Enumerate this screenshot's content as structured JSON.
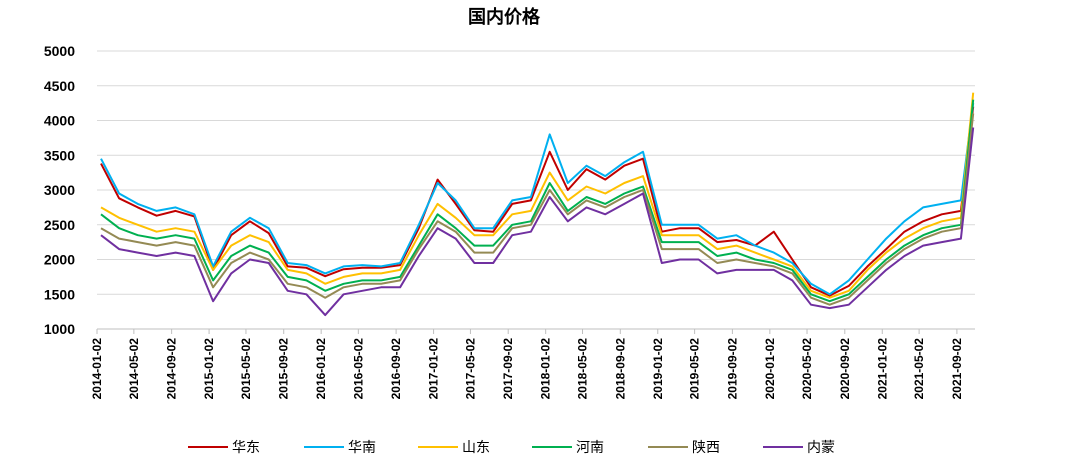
{
  "chart_data": {
    "type": "line",
    "title": "国内价格",
    "xlabel": "",
    "ylabel": "",
    "ylim": [
      1000,
      5000
    ],
    "yticks": [
      1000,
      1500,
      2000,
      2500,
      3000,
      3500,
      4000,
      4500,
      5000
    ],
    "xticks": [
      "2014-01-02",
      "2014-05-02",
      "2014-09-02",
      "2015-01-02",
      "2015-05-02",
      "2015-09-02",
      "2016-01-02",
      "2016-05-02",
      "2016-09-02",
      "2017-01-02",
      "2017-05-02",
      "2017-09-02",
      "2018-01-02",
      "2018-05-02",
      "2018-09-02",
      "2019-01-02",
      "2019-05-02",
      "2019-09-02",
      "2020-01-02",
      "2020-05-02",
      "2020-09-02",
      "2021-01-02",
      "2021-05-02",
      "2021-09-02"
    ],
    "grid": true,
    "legend_position": "bottom",
    "x": [
      "2014-01",
      "2014-03",
      "2014-05",
      "2014-07",
      "2014-09",
      "2014-11",
      "2015-01",
      "2015-03",
      "2015-05",
      "2015-07",
      "2015-09",
      "2015-11",
      "2016-01",
      "2016-03",
      "2016-05",
      "2016-07",
      "2016-09",
      "2016-11",
      "2017-01",
      "2017-03",
      "2017-05",
      "2017-07",
      "2017-09",
      "2017-11",
      "2018-01",
      "2018-03",
      "2018-05",
      "2018-07",
      "2018-09",
      "2018-11",
      "2019-01",
      "2019-03",
      "2019-05",
      "2019-07",
      "2019-09",
      "2019-11",
      "2020-01",
      "2020-03",
      "2020-05",
      "2020-07",
      "2020-09",
      "2020-11",
      "2021-01",
      "2021-03",
      "2021-05",
      "2021-07",
      "2021-09",
      "2021-10"
    ],
    "series": [
      {
        "name": "华东",
        "color": "#c00000",
        "values": [
          3380,
          2880,
          2750,
          2630,
          2700,
          2620,
          1850,
          2350,
          2550,
          2380,
          1900,
          1880,
          1760,
          1860,
          1880,
          1880,
          1920,
          2450,
          3150,
          2800,
          2420,
          2400,
          2800,
          2850,
          3550,
          3000,
          3300,
          3150,
          3350,
          3450,
          2400,
          2450,
          2450,
          2250,
          2280,
          2200,
          2400,
          2000,
          1600,
          1480,
          1620,
          1900,
          2150,
          2400,
          2550,
          2650,
          2700,
          4200
        ]
      },
      {
        "name": "华南",
        "color": "#00b0f0",
        "values": [
          3450,
          2950,
          2800,
          2700,
          2750,
          2650,
          1900,
          2400,
          2600,
          2450,
          1950,
          1920,
          1800,
          1900,
          1920,
          1900,
          1950,
          2500,
          3100,
          2850,
          2450,
          2450,
          2850,
          2900,
          3800,
          3100,
          3350,
          3200,
          3400,
          3550,
          2500,
          2500,
          2500,
          2300,
          2350,
          2200,
          2100,
          1950,
          1650,
          1500,
          1700,
          2000,
          2300,
          2550,
          2750,
          2800,
          2850,
          4250
        ]
      },
      {
        "name": "山东",
        "color": "#ffc000",
        "values": [
          2750,
          2600,
          2500,
          2400,
          2450,
          2400,
          1850,
          2200,
          2350,
          2250,
          1850,
          1800,
          1650,
          1750,
          1800,
          1800,
          1850,
          2350,
          2800,
          2600,
          2350,
          2350,
          2650,
          2700,
          3250,
          2850,
          3050,
          2950,
          3100,
          3200,
          2350,
          2350,
          2350,
          2150,
          2200,
          2100,
          2000,
          1900,
          1550,
          1450,
          1550,
          1850,
          2100,
          2300,
          2450,
          2550,
          2600,
          4400
        ]
      },
      {
        "name": "河南",
        "color": "#00b050",
        "values": [
          2650,
          2450,
          2350,
          2300,
          2350,
          2300,
          1700,
          2050,
          2200,
          2100,
          1750,
          1700,
          1550,
          1650,
          1700,
          1700,
          1750,
          2200,
          2650,
          2450,
          2200,
          2200,
          2500,
          2550,
          3100,
          2700,
          2900,
          2800,
          2950,
          3050,
          2250,
          2250,
          2250,
          2050,
          2100,
          2000,
          1950,
          1850,
          1500,
          1400,
          1500,
          1750,
          2000,
          2200,
          2350,
          2450,
          2500,
          4300
        ]
      },
      {
        "name": "陕西",
        "color": "#948a54",
        "values": [
          2450,
          2300,
          2250,
          2200,
          2250,
          2200,
          1600,
          1950,
          2100,
          2000,
          1650,
          1600,
          1450,
          1600,
          1650,
          1650,
          1700,
          2150,
          2550,
          2400,
          2100,
          2100,
          2450,
          2500,
          3000,
          2650,
          2850,
          2750,
          2900,
          3000,
          2150,
          2150,
          2150,
          1950,
          2000,
          1950,
          1900,
          1800,
          1450,
          1350,
          1450,
          1700,
          1950,
          2150,
          2300,
          2400,
          2450,
          4100
        ]
      },
      {
        "name": "内蒙",
        "color": "#7030a0",
        "values": [
          2350,
          2150,
          2100,
          2050,
          2100,
          2050,
          1400,
          1800,
          2000,
          1950,
          1550,
          1500,
          1200,
          1500,
          1550,
          1600,
          1600,
          2050,
          2450,
          2300,
          1950,
          1950,
          2350,
          2400,
          2900,
          2550,
          2750,
          2650,
          2800,
          2950,
          1950,
          2000,
          2000,
          1800,
          1850,
          1850,
          1850,
          1700,
          1350,
          1300,
          1350,
          1600,
          1850,
          2050,
          2200,
          2250,
          2300,
          3900
        ]
      }
    ]
  }
}
